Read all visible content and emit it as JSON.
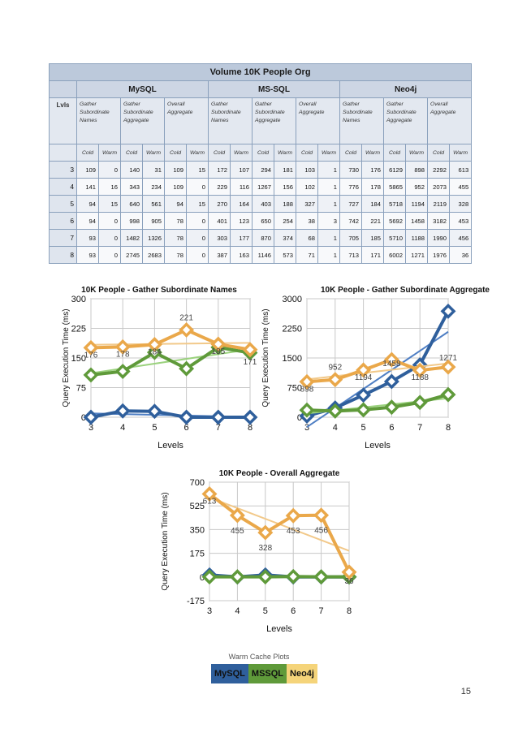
{
  "table": {
    "title": "Volume 10K People Org",
    "databases": [
      "MySQL",
      "MS-SQL",
      "Neo4j"
    ],
    "levels_label": "Lvls",
    "query_headers": [
      "Gather Subordinate Names",
      "Gather Subordinate Aggregate",
      "Overall Aggregate"
    ],
    "cold_label": "Cold",
    "warm_label": "Warm",
    "rows": [
      {
        "level": "3",
        "values": [
          "109",
          "0",
          "140",
          "31",
          "109",
          "15",
          "172",
          "107",
          "294",
          "181",
          "103",
          "1",
          "730",
          "176",
          "6129",
          "898",
          "2292",
          "613"
        ]
      },
      {
        "level": "4",
        "values": [
          "141",
          "16",
          "343",
          "234",
          "109",
          "0",
          "229",
          "116",
          "1267",
          "156",
          "102",
          "1",
          "776",
          "178",
          "5865",
          "952",
          "2073",
          "455"
        ]
      },
      {
        "level": "5",
        "values": [
          "94",
          "15",
          "640",
          "561",
          "94",
          "15",
          "270",
          "164",
          "403",
          "188",
          "327",
          "1",
          "727",
          "184",
          "5718",
          "1194",
          "2119",
          "328"
        ]
      },
      {
        "level": "6",
        "values": [
          "94",
          "0",
          "998",
          "905",
          "78",
          "0",
          "401",
          "123",
          "650",
          "254",
          "38",
          "3",
          "742",
          "221",
          "5692",
          "1458",
          "3182",
          "453"
        ]
      },
      {
        "level": "7",
        "values": [
          "93",
          "0",
          "1482",
          "1326",
          "78",
          "0",
          "303",
          "177",
          "870",
          "374",
          "68",
          "1",
          "705",
          "185",
          "5710",
          "1188",
          "1990",
          "456"
        ]
      },
      {
        "level": "8",
        "values": [
          "93",
          "0",
          "2745",
          "2683",
          "78",
          "0",
          "387",
          "163",
          "1146",
          "573",
          "71",
          "1",
          "713",
          "171",
          "6002",
          "1271",
          "1976",
          "36"
        ]
      }
    ]
  },
  "colors": {
    "mysql": "#2f5f9c",
    "mssql": "#5f9a3a",
    "neo4j": "#eaa84a"
  },
  "chart_data": [
    {
      "type": "line",
      "title": "10K People - Gather Subordinate Names",
      "xlabel": "Levels",
      "ylabel": "Query Execution Time (ms)",
      "x": [
        3,
        4,
        5,
        6,
        7,
        8
      ],
      "ylim": [
        0,
        300
      ],
      "yticks": [
        0,
        75,
        150,
        225,
        300
      ],
      "series": [
        {
          "name": "MySQL",
          "values": [
            0,
            16,
            15,
            0,
            0,
            0
          ]
        },
        {
          "name": "MSSQL",
          "values": [
            107,
            116,
            164,
            123,
            177,
            163
          ]
        },
        {
          "name": "Neo4j",
          "values": [
            176,
            178,
            184,
            221,
            185,
            171
          ]
        }
      ],
      "data_labels": [
        "176",
        "178",
        "184",
        "221",
        "185",
        "171"
      ]
    },
    {
      "type": "line",
      "title": "10K People - Gather Subordinate Aggregate",
      "xlabel": "Levels",
      "ylabel": "Query Execution Time (ms)",
      "x": [
        3,
        4,
        5,
        6,
        7,
        8
      ],
      "ylim": [
        0,
        3000
      ],
      "yticks": [
        0,
        750,
        1500,
        2250,
        3000
      ],
      "series": [
        {
          "name": "MySQL",
          "values": [
            31,
            234,
            561,
            905,
            1326,
            2683
          ]
        },
        {
          "name": "MSSQL",
          "values": [
            181,
            156,
            188,
            254,
            374,
            573
          ]
        },
        {
          "name": "Neo4j",
          "values": [
            898,
            952,
            1194,
            1458,
            1188,
            1271
          ]
        }
      ],
      "data_labels": [
        "898",
        "952",
        "1194",
        "1458",
        "1188",
        "1271"
      ]
    },
    {
      "type": "line",
      "title": "10K People - Overall Aggregate",
      "xlabel": "Levels",
      "ylabel": "Query Execution Time (ms)",
      "x": [
        3,
        4,
        5,
        6,
        7,
        8
      ],
      "ylim": [
        -175,
        700
      ],
      "yticks": [
        -175,
        0,
        175,
        350,
        525,
        700
      ],
      "series": [
        {
          "name": "MySQL",
          "values": [
            15,
            0,
            15,
            0,
            0,
            0
          ]
        },
        {
          "name": "MSSQL",
          "values": [
            1,
            1,
            1,
            3,
            1,
            1
          ]
        },
        {
          "name": "Neo4j",
          "values": [
            613,
            455,
            328,
            453,
            456,
            36
          ]
        }
      ],
      "data_labels": [
        "613",
        "455",
        "328",
        "453",
        "456",
        "36"
      ]
    }
  ],
  "legend": {
    "caption": "Warm Cache Plots",
    "items": [
      {
        "label": "MySQL",
        "color": "#2f5f9c"
      },
      {
        "label": "MSSQL",
        "color": "#5f9a3a"
      },
      {
        "label": "Neo4j",
        "color": "#f5d47a"
      }
    ]
  },
  "page_number": "15"
}
